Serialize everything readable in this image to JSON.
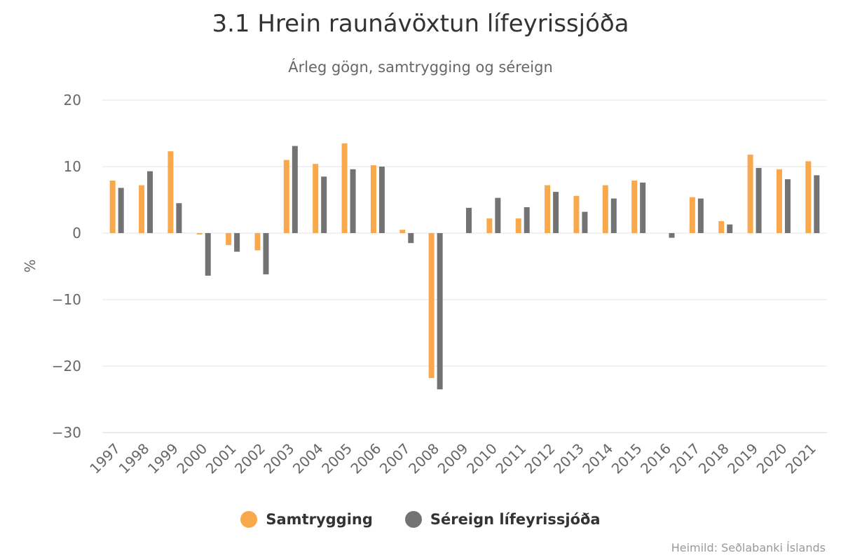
{
  "chart_data": {
    "type": "bar",
    "title": "3.1 Hrein raunávöxtun lífeyrissjóða",
    "subtitle": "Árleg gögn, samtrygging og séreign",
    "ylabel": "%",
    "xlabel": "",
    "ylim": [
      -30,
      20
    ],
    "yticks": [
      20,
      10,
      0,
      -10,
      -20,
      -30
    ],
    "ytick_labels": [
      "20",
      "10",
      "0",
      "−10",
      "−20",
      "−30"
    ],
    "grid": true,
    "legend_position": "bottom",
    "categories": [
      "1997",
      "1998",
      "1999",
      "2000",
      "2001",
      "2002",
      "2003",
      "2004",
      "2005",
      "2006",
      "2007",
      "2008",
      "2009",
      "2010",
      "2011",
      "2012",
      "2013",
      "2014",
      "2015",
      "2016",
      "2017",
      "2018",
      "2019",
      "2020",
      "2021"
    ],
    "series": [
      {
        "name": "Samtrygging",
        "color": "#f9a94b",
        "values": [
          7.9,
          7.2,
          12.3,
          -0.2,
          -1.8,
          -2.6,
          11.0,
          10.4,
          13.5,
          10.2,
          0.5,
          -21.8,
          0.0,
          2.2,
          2.2,
          7.2,
          5.6,
          7.2,
          7.9,
          0.0,
          5.4,
          1.8,
          11.8,
          9.6,
          10.8
        ]
      },
      {
        "name": "Séreign lífeyrissjóða",
        "color": "#737373",
        "values": [
          6.8,
          9.3,
          4.5,
          -6.4,
          -2.8,
          -6.2,
          13.1,
          8.5,
          9.6,
          10.0,
          -1.5,
          -23.5,
          3.8,
          5.3,
          3.9,
          6.2,
          3.2,
          5.2,
          7.6,
          -0.7,
          5.2,
          1.3,
          9.8,
          8.1,
          8.7
        ]
      }
    ],
    "credits": "Heimild: Seðlabanki Íslands"
  }
}
